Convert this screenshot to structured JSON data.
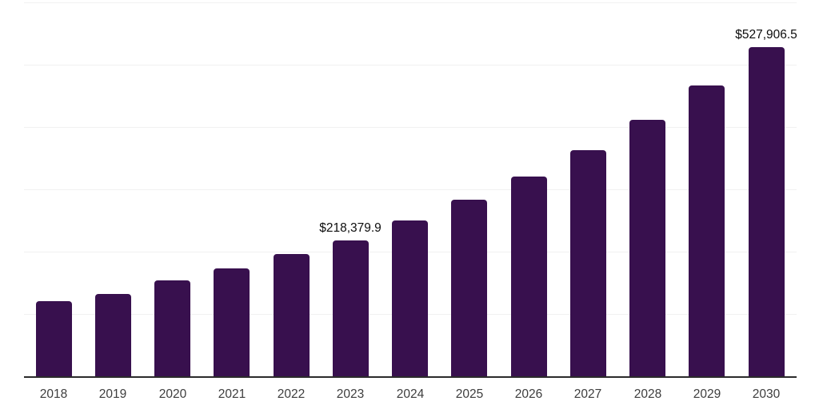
{
  "chart_data": {
    "type": "bar",
    "title": "",
    "xlabel": "",
    "ylabel": "",
    "categories": [
      "2018",
      "2019",
      "2020",
      "2021",
      "2022",
      "2023",
      "2024",
      "2025",
      "2026",
      "2027",
      "2028",
      "2029",
      "2030"
    ],
    "values": [
      119900,
      132400,
      153800,
      172700,
      196100,
      218379.9,
      249600,
      283300,
      320500,
      362800,
      411500,
      467000,
      527906.5
    ],
    "data_labels": [
      "",
      "",
      "",
      "",
      "",
      "$218,379.9",
      "",
      "",
      "",
      "",
      "",
      "",
      "$527,906.5"
    ],
    "ylim": [
      0,
      605000
    ],
    "gridline_interval": 100000,
    "grid": true,
    "legend": false,
    "colors": {
      "bar": "#38104E",
      "axis_line": "#2B2B2B",
      "gridline": "#F1F1F1",
      "tick_label": "#3D3D3D",
      "data_label": "#0D0D0D",
      "background": "#FFFFFF"
    }
  }
}
